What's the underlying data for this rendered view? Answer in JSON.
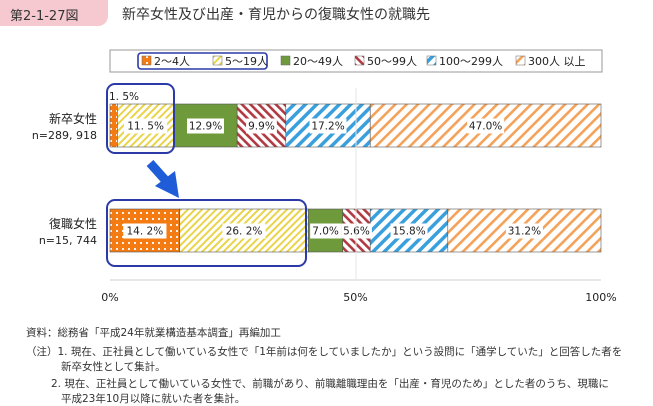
{
  "header": {
    "figure_number": "第2-1-27図",
    "title": "新卒女性及び出産・育児からの復職女性の就職先"
  },
  "chart_data": {
    "type": "bar",
    "orientation": "horizontal",
    "stacked": true,
    "xlim": [
      0,
      100
    ],
    "x_ticks": [
      "0%",
      "50%",
      "100%"
    ],
    "legend_position": "top",
    "series": [
      {
        "name": "2～4人",
        "color": "#f47a12",
        "pattern": "dots"
      },
      {
        "name": "5～19人",
        "color": "#e9d44a",
        "pattern": "diag-right"
      },
      {
        "name": "20～49人",
        "color": "#6e9a3c",
        "pattern": "solid"
      },
      {
        "name": "50～99人",
        "color": "#b03a42",
        "pattern": "diag-left"
      },
      {
        "name": "100～299人",
        "color": "#3aa0dd",
        "pattern": "diag-right-wide"
      },
      {
        "name": "300人 以上",
        "color": "#f4a259",
        "pattern": "diag-right-thin"
      }
    ],
    "categories": [
      {
        "label": "新卒女性",
        "n": "n=289, 918",
        "values": [
          1.5,
          11.5,
          12.9,
          9.9,
          17.2,
          47.0
        ],
        "labels": [
          "1. 5%",
          "11. 5%",
          "12.9%",
          "9.9%",
          "17.2%",
          "47.0%"
        ]
      },
      {
        "label": "復職女性",
        "n": "n=15, 744",
        "values": [
          14.2,
          26.2,
          7.0,
          5.6,
          15.8,
          31.2
        ],
        "labels": [
          "14. 2%",
          "26. 2%",
          "7.0%",
          "5.6%",
          "15.8%",
          "31.2%"
        ]
      }
    ],
    "annotation_colors": {
      "highlight_box": "#2c3aa8",
      "arrow": "#1f5cd8"
    }
  },
  "footnotes": {
    "source": "資料：総務省「平成24年就業構造基本調査」再編加工",
    "note1_line1": "（注）1.  現在、正社員として働いている女性で「1年前は何をしていましたか」という設問に「通学していた」と回答した者を",
    "note1_line2": "新卒女性として集計。",
    "note2_line1": "2.  現在、正社員として働いている女性で、前職があり、前職離職理由を「出産・育児のため」とした者のうち、現職に",
    "note2_line2": "平成23年10月以降に就いた者を集計。"
  }
}
